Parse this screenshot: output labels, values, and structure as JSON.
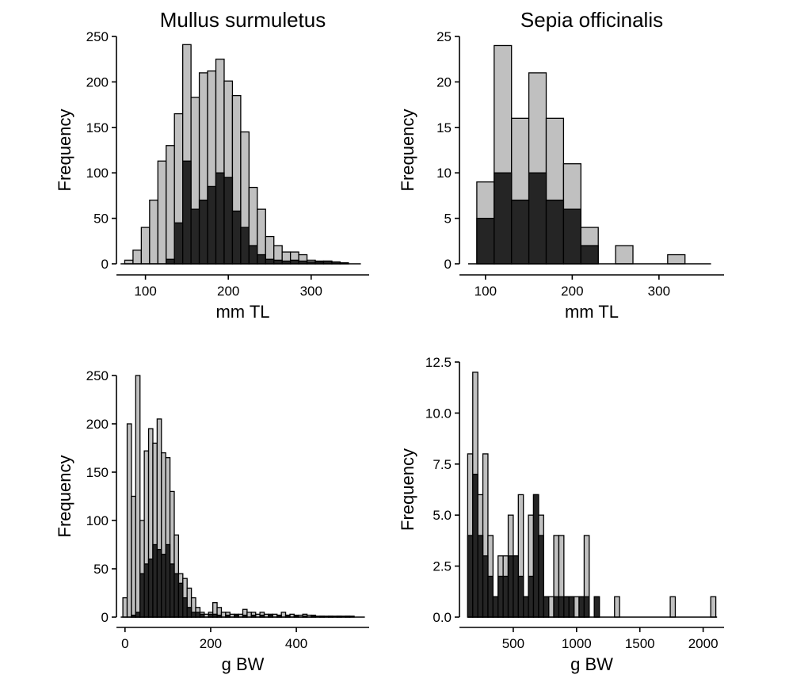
{
  "chart_data": [
    {
      "type": "bar",
      "title": "Mullus surmuletus",
      "xlabel": "mm TL",
      "ylabel": "Frequency",
      "xlim": [
        65,
        370
      ],
      "ylim": [
        0,
        250
      ],
      "xticks": [
        100,
        200,
        300
      ],
      "yticks": [
        0,
        50,
        100,
        150,
        200,
        250
      ],
      "bin_width": 10,
      "baseline_range": [
        70,
        360
      ],
      "colors": {
        "total": "#c0c0c0",
        "subset": "#252525"
      },
      "series": [
        {
          "values": [
            [
              80,
              4
            ],
            [
              90,
              15
            ],
            [
              100,
              40
            ],
            [
              110,
              70
            ],
            [
              120,
              113
            ],
            [
              130,
              130
            ],
            [
              140,
              165
            ],
            [
              150,
              241
            ],
            [
              160,
              183
            ],
            [
              170,
              210
            ],
            [
              180,
              212
            ],
            [
              190,
              225
            ],
            [
              200,
              201
            ],
            [
              210,
              185
            ],
            [
              220,
              145
            ],
            [
              230,
              84
            ],
            [
              240,
              60
            ],
            [
              250,
              30
            ],
            [
              260,
              20
            ],
            [
              270,
              13
            ],
            [
              280,
              13
            ],
            [
              290,
              10
            ],
            [
              300,
              4
            ],
            [
              310,
              3
            ],
            [
              320,
              3
            ],
            [
              330,
              1
            ],
            [
              340,
              1
            ]
          ]
        },
        {
          "values": [
            [
              130,
              5
            ],
            [
              140,
              45
            ],
            [
              150,
              113
            ],
            [
              160,
              60
            ],
            [
              170,
              70
            ],
            [
              180,
              85
            ],
            [
              190,
              100
            ],
            [
              200,
              95
            ],
            [
              210,
              58
            ],
            [
              220,
              40
            ],
            [
              230,
              20
            ],
            [
              240,
              10
            ],
            [
              250,
              5
            ],
            [
              260,
              4
            ],
            [
              270,
              3
            ],
            [
              280,
              4
            ],
            [
              290,
              3
            ],
            [
              300,
              2
            ],
            [
              310,
              2
            ],
            [
              320,
              3
            ],
            [
              330,
              2
            ],
            [
              340,
              1
            ]
          ]
        }
      ]
    },
    {
      "type": "bar",
      "title": "Sepia officinalis",
      "xlabel": "mm TL",
      "ylabel": "Frequency",
      "xlim": [
        70,
        375
      ],
      "ylim": [
        0,
        25
      ],
      "xticks": [
        100,
        200,
        300
      ],
      "yticks": [
        0,
        5,
        10,
        15,
        20,
        25
      ],
      "bin_width": 20,
      "baseline_range": [
        80,
        360
      ],
      "colors": {
        "total": "#c0c0c0",
        "subset": "#252525"
      },
      "series": [
        {
          "values": [
            [
              100,
              9
            ],
            [
              120,
              24
            ],
            [
              140,
              16
            ],
            [
              160,
              21
            ],
            [
              180,
              16
            ],
            [
              200,
              11
            ],
            [
              220,
              4
            ],
            [
              260,
              2
            ],
            [
              320,
              1
            ]
          ]
        },
        {
          "values": [
            [
              100,
              5
            ],
            [
              120,
              10
            ],
            [
              140,
              7
            ],
            [
              160,
              10
            ],
            [
              180,
              7
            ],
            [
              200,
              6
            ],
            [
              220,
              2
            ]
          ]
        }
      ]
    },
    {
      "type": "bar",
      "xlabel": "g BW",
      "ylabel": "Frequency",
      "xlim": [
        -20,
        570
      ],
      "ylim": [
        0,
        250
      ],
      "xticks": [
        0,
        200,
        400
      ],
      "yticks": [
        0,
        50,
        100,
        150,
        200,
        250
      ],
      "bin_width": 10,
      "baseline_range": [
        -10,
        560
      ],
      "colors": {
        "total": "#c0c0c0",
        "subset": "#252525"
      },
      "series": [
        {
          "values": [
            [
              0,
              20
            ],
            [
              10,
              200
            ],
            [
              20,
              125
            ],
            [
              30,
              250
            ],
            [
              40,
              100
            ],
            [
              50,
              172
            ],
            [
              60,
              195
            ],
            [
              70,
              180
            ],
            [
              80,
              205
            ],
            [
              90,
              170
            ],
            [
              100,
              165
            ],
            [
              110,
              130
            ],
            [
              120,
              85
            ],
            [
              130,
              45
            ],
            [
              140,
              40
            ],
            [
              150,
              30
            ],
            [
              160,
              20
            ],
            [
              170,
              10
            ],
            [
              180,
              5
            ],
            [
              190,
              3
            ],
            [
              200,
              5
            ],
            [
              210,
              15
            ],
            [
              220,
              10
            ],
            [
              230,
              5
            ],
            [
              240,
              5
            ],
            [
              250,
              3
            ],
            [
              260,
              3
            ],
            [
              270,
              3
            ],
            [
              280,
              8
            ],
            [
              290,
              5
            ],
            [
              300,
              5
            ],
            [
              310,
              3
            ],
            [
              320,
              5
            ],
            [
              330,
              3
            ],
            [
              340,
              3
            ],
            [
              350,
              3
            ],
            [
              360,
              2
            ],
            [
              370,
              5
            ],
            [
              380,
              2
            ],
            [
              390,
              3
            ],
            [
              400,
              2
            ],
            [
              410,
              2
            ],
            [
              420,
              3
            ],
            [
              430,
              2
            ],
            [
              440,
              2
            ],
            [
              450,
              1
            ],
            [
              460,
              1
            ],
            [
              470,
              1
            ],
            [
              480,
              1
            ],
            [
              490,
              1
            ],
            [
              500,
              1
            ],
            [
              510,
              1
            ],
            [
              520,
              1
            ],
            [
              530,
              1
            ]
          ]
        },
        {
          "values": [
            [
              20,
              2
            ],
            [
              30,
              5
            ],
            [
              40,
              45
            ],
            [
              50,
              55
            ],
            [
              60,
              60
            ],
            [
              70,
              75
            ],
            [
              80,
              70
            ],
            [
              90,
              65
            ],
            [
              100,
              75
            ],
            [
              110,
              55
            ],
            [
              120,
              45
            ],
            [
              130,
              35
            ],
            [
              140,
              20
            ],
            [
              150,
              10
            ],
            [
              160,
              5
            ],
            [
              170,
              5
            ],
            [
              180,
              3
            ],
            [
              200,
              3
            ],
            [
              210,
              3
            ],
            [
              220,
              2
            ],
            [
              240,
              2
            ],
            [
              260,
              2
            ],
            [
              280,
              2
            ],
            [
              300,
              2
            ],
            [
              320,
              2
            ],
            [
              340,
              2
            ],
            [
              360,
              2
            ],
            [
              380,
              2
            ],
            [
              400,
              1
            ],
            [
              420,
              1
            ],
            [
              440,
              1
            ],
            [
              460,
              1
            ],
            [
              480,
              1
            ],
            [
              500,
              1
            ],
            [
              520,
              1
            ]
          ]
        }
      ]
    },
    {
      "type": "bar",
      "xlabel": "g BW",
      "ylabel": "Frequency",
      "xlim": [
        75,
        2165
      ],
      "ylim": [
        0,
        12.5
      ],
      "xticks": [
        500,
        1000,
        1500,
        2000
      ],
      "yticks": [
        "0.0",
        "2.5",
        "5.0",
        "7.5",
        "10.0",
        "12.5"
      ],
      "bin_width": 40,
      "baseline_range": [
        140,
        2110
      ],
      "colors": {
        "total": "#c0c0c0",
        "subset": "#252525"
      },
      "series": [
        {
          "values": [
            [
              160,
              8
            ],
            [
              200,
              12
            ],
            [
              240,
              6
            ],
            [
              280,
              8
            ],
            [
              320,
              4
            ],
            [
              360,
              1
            ],
            [
              400,
              3
            ],
            [
              440,
              3
            ],
            [
              480,
              5
            ],
            [
              520,
              3
            ],
            [
              560,
              6
            ],
            [
              600,
              1
            ],
            [
              640,
              5
            ],
            [
              680,
              6
            ],
            [
              720,
              5
            ],
            [
              760,
              1
            ],
            [
              800,
              1
            ],
            [
              840,
              4
            ],
            [
              880,
              4
            ],
            [
              920,
              1
            ],
            [
              960,
              1
            ],
            [
              1000,
              1
            ],
            [
              1040,
              1
            ],
            [
              1080,
              4
            ],
            [
              1160,
              1
            ],
            [
              1320,
              1
            ],
            [
              1760,
              1
            ],
            [
              2080,
              1
            ]
          ]
        },
        {
          "values": [
            [
              160,
              4
            ],
            [
              200,
              7
            ],
            [
              240,
              4
            ],
            [
              280,
              3
            ],
            [
              320,
              2
            ],
            [
              360,
              1
            ],
            [
              400,
              2
            ],
            [
              440,
              2
            ],
            [
              480,
              3
            ],
            [
              520,
              3
            ],
            [
              560,
              2
            ],
            [
              600,
              1
            ],
            [
              640,
              2
            ],
            [
              680,
              6
            ],
            [
              720,
              4
            ],
            [
              760,
              1
            ],
            [
              840,
              1
            ],
            [
              880,
              1
            ],
            [
              920,
              1
            ],
            [
              960,
              1
            ],
            [
              1040,
              1
            ],
            [
              1080,
              1
            ],
            [
              1160,
              1
            ]
          ]
        }
      ]
    }
  ]
}
